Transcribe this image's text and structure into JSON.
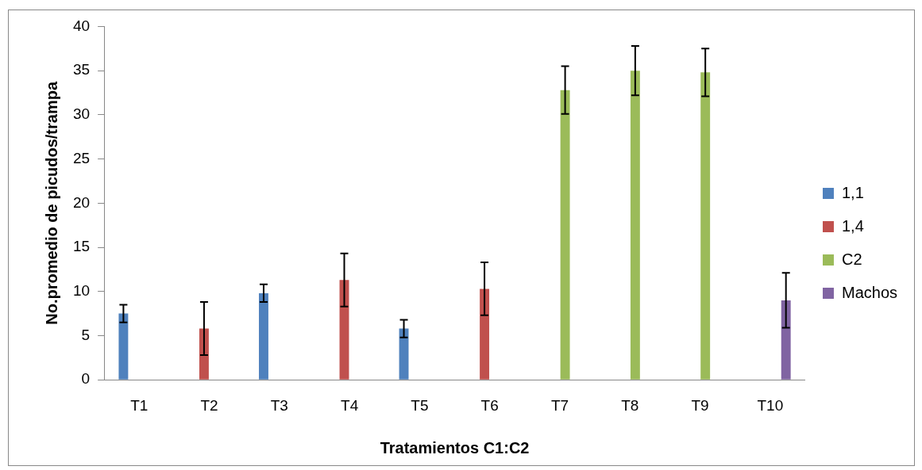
{
  "chart_data": {
    "type": "bar",
    "xlabel": "Tratamientos C1:C2",
    "ylabel": "No.promedio de picudos/trampa",
    "categories": [
      "T1",
      "T2",
      "T3",
      "T4",
      "T5",
      "T6",
      "T7",
      "T8",
      "T9",
      "T10"
    ],
    "series": [
      {
        "name": "1,1",
        "color": "#4f81bd",
        "values": [
          7.5,
          null,
          9.8,
          null,
          5.8,
          null,
          null,
          null,
          null,
          null
        ],
        "errors": [
          1,
          null,
          1,
          null,
          1,
          null,
          null,
          null,
          null,
          null
        ]
      },
      {
        "name": "1,4",
        "color": "#c0504d",
        "values": [
          null,
          5.8,
          null,
          11.3,
          null,
          10.3,
          null,
          null,
          null,
          null
        ],
        "errors": [
          null,
          3,
          null,
          3,
          null,
          3,
          null,
          null,
          null,
          null
        ]
      },
      {
        "name": "C2",
        "color": "#9bbb59",
        "values": [
          null,
          null,
          null,
          null,
          null,
          null,
          32.8,
          35.0,
          34.8,
          null
        ],
        "errors": [
          null,
          null,
          null,
          null,
          null,
          null,
          2.7,
          2.8,
          2.7,
          null
        ]
      },
      {
        "name": "Machos",
        "color": "#8064a2",
        "values": [
          null,
          null,
          null,
          null,
          null,
          null,
          null,
          null,
          null,
          9.0
        ],
        "errors": [
          null,
          null,
          null,
          null,
          null,
          null,
          null,
          null,
          null,
          3.1
        ]
      }
    ],
    "ylim": [
      0,
      40
    ],
    "yticks": [
      0,
      5,
      10,
      15,
      20,
      25,
      30,
      35,
      40
    ],
    "grid": false,
    "legend": "right"
  }
}
